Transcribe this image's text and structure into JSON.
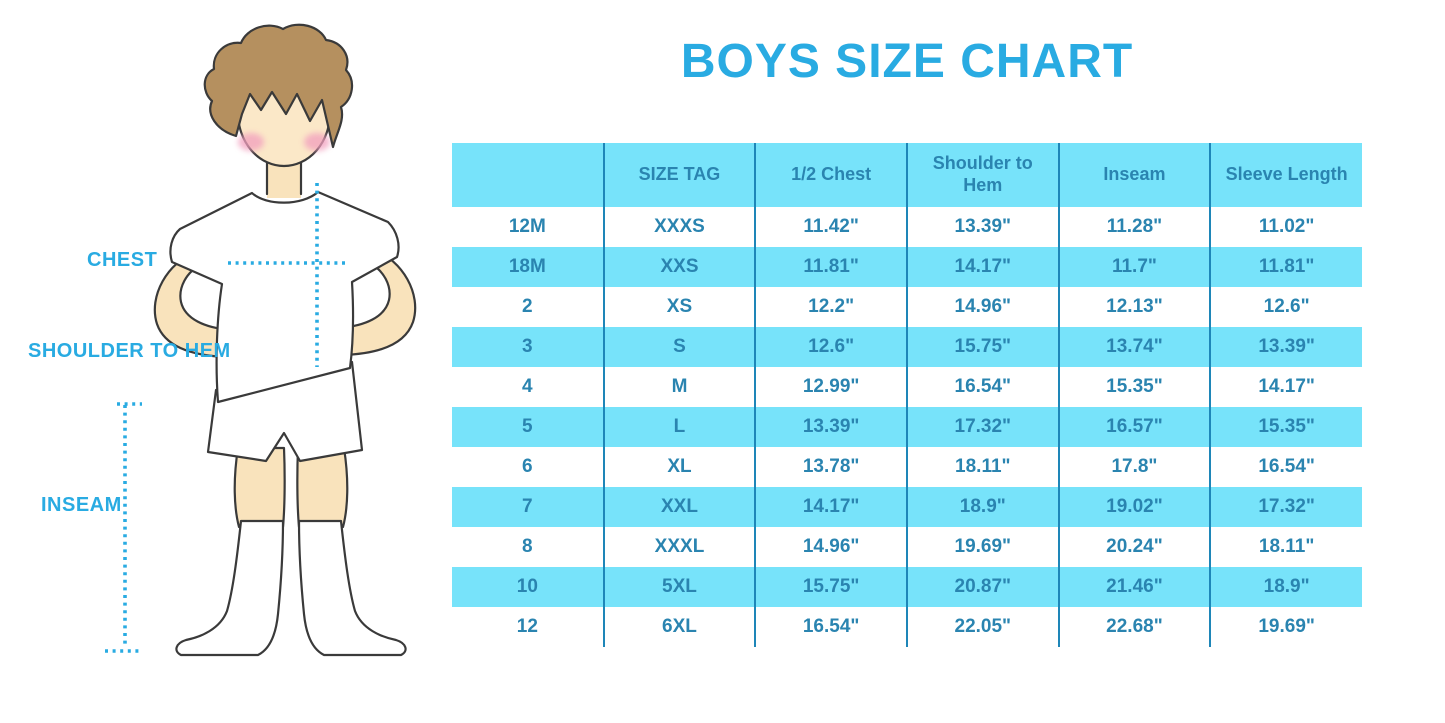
{
  "title": "BOYS SIZE CHART",
  "figure": {
    "labels": {
      "chest": "CHEST",
      "shoulder_to_hem": "SHOULDER TO HEM",
      "inseam": "INSEAM"
    }
  },
  "colors": {
    "accent_blue": "#29ABE2",
    "table_band_cyan": "#77E3FA",
    "table_text_blue": "#2A84B0",
    "table_line_blue": "#1E86B8",
    "skin": "#F9E3BC",
    "hair": "#B5905F"
  },
  "chart_data": {
    "type": "table",
    "title": "BOYS SIZE CHART",
    "columns": [
      "",
      "SIZE TAG",
      "1/2 Chest",
      "Shoulder to Hem",
      "Inseam",
      "Sleeve Length"
    ],
    "rows": [
      [
        "12M",
        "XXXS",
        "11.42\"",
        "13.39\"",
        "11.28\"",
        "11.02\""
      ],
      [
        "18M",
        "XXS",
        "11.81\"",
        "14.17\"",
        "11.7\"",
        "11.81\""
      ],
      [
        "2",
        "XS",
        "12.2\"",
        "14.96\"",
        "12.13\"",
        "12.6\""
      ],
      [
        "3",
        "S",
        "12.6\"",
        "15.75\"",
        "13.74\"",
        "13.39\""
      ],
      [
        "4",
        "M",
        "12.99\"",
        "16.54\"",
        "15.35\"",
        "14.17\""
      ],
      [
        "5",
        "L",
        "13.39\"",
        "17.32\"",
        "16.57\"",
        "15.35\""
      ],
      [
        "6",
        "XL",
        "13.78\"",
        "18.11\"",
        "17.8\"",
        "16.54\""
      ],
      [
        "7",
        "XXL",
        "14.17\"",
        "18.9\"",
        "19.02\"",
        "17.32\""
      ],
      [
        "8",
        "XXXL",
        "14.96\"",
        "19.69\"",
        "20.24\"",
        "18.11\""
      ],
      [
        "10",
        "5XL",
        "15.75\"",
        "20.87\"",
        "21.46\"",
        "18.9\""
      ],
      [
        "12",
        "6XL",
        "16.54\"",
        "22.05\"",
        "22.68\"",
        "19.69\""
      ]
    ],
    "layout_hints": {
      "striping": "header and every second data row cyan",
      "gridlines": "vertical column separators only"
    }
  }
}
